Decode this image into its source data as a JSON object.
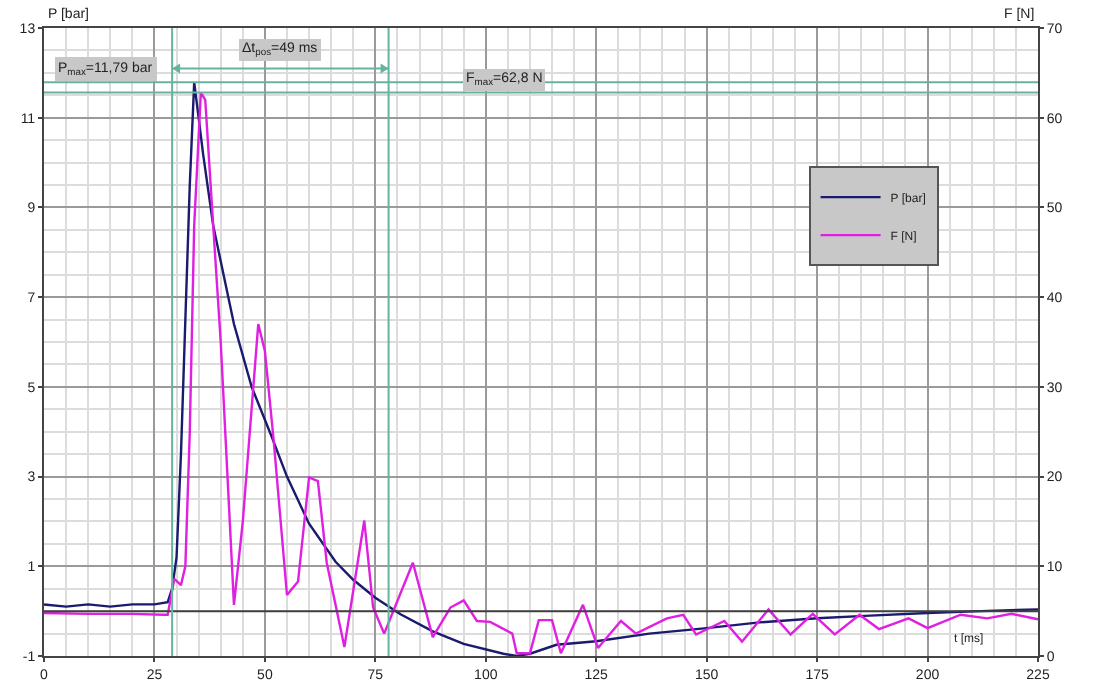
{
  "chart_data": {
    "type": "line",
    "xlabel": "t [ms]",
    "ylabel": "P [bar]",
    "y2label": "F [N]",
    "xlim": [
      0,
      225
    ],
    "xticks": [
      0,
      25,
      50,
      75,
      100,
      125,
      150,
      175,
      200,
      225
    ],
    "ylim": [
      -1,
      13
    ],
    "yticks": [
      -1,
      1,
      3,
      5,
      7,
      9,
      11,
      13
    ],
    "y2lim": [
      0,
      70
    ],
    "y2ticks": [
      0,
      10,
      20,
      30,
      40,
      50,
      60,
      70
    ],
    "grid": true,
    "legend": "top right",
    "marker": "none",
    "line_style": "solid",
    "series": [
      {
        "name": "P [bar]",
        "color": "#1a1a6e",
        "x": [
          0,
          5,
          10,
          15,
          20,
          25,
          28,
          29,
          30,
          31,
          32,
          33,
          34,
          35,
          36,
          38.3,
          40,
          43,
          47,
          51.5,
          55,
          60,
          66,
          70,
          75,
          80.7,
          88,
          95,
          104,
          107,
          110,
          116,
          125,
          137,
          150,
          162,
          175,
          187,
          200,
          212,
          225
        ],
        "values": [
          0.15,
          0.1,
          0.15,
          0.1,
          0.15,
          0.15,
          0.2,
          0.5,
          1.2,
          3.5,
          6.5,
          9.5,
          11.79,
          11,
          10.2,
          8.6,
          7.8,
          6.4,
          5,
          3.9,
          3,
          1.95,
          1.1,
          0.7,
          0.3,
          -0.07,
          -0.45,
          -0.73,
          -0.95,
          -1,
          -0.95,
          -0.75,
          -0.67,
          -0.5,
          -0.38,
          -0.25,
          -0.16,
          -0.1,
          -0.04,
          0,
          0.04
        ]
      },
      {
        "name": "F [N]",
        "color": "#e020e0",
        "axis": "y2",
        "x": [
          0,
          10,
          20,
          27,
          28,
          29.5,
          31,
          32,
          33,
          34,
          35.5,
          36.5,
          38.3,
          40,
          43,
          45,
          48.5,
          50,
          52,
          55,
          57.5,
          60,
          62,
          64,
          68,
          72.5,
          74.5,
          77,
          83.5,
          88,
          92,
          95,
          98,
          101,
          106,
          107,
          110,
          112,
          115,
          117,
          122,
          125.4,
          130.6,
          134,
          141,
          144.7,
          147.6,
          154,
          158,
          164,
          169,
          174,
          179,
          184.6,
          189,
          195.7,
          200,
          207.5,
          213.5,
          219,
          225
        ],
        "values": [
          4.8,
          4.7,
          4.7,
          4.6,
          4.6,
          8.6,
          7.9,
          10,
          25,
          48,
          62.8,
          62,
          48,
          35,
          5.7,
          15,
          37,
          34,
          24,
          6.8,
          8.3,
          19.9,
          19.5,
          10.4,
          1,
          15.1,
          5.4,
          2.5,
          10.4,
          2.1,
          5.4,
          6.2,
          3.9,
          3.8,
          2.5,
          0.3,
          0.3,
          4,
          4,
          0.3,
          5.7,
          0.9,
          3.9,
          2.5,
          4.2,
          4.6,
          2.4,
          3.9,
          1.6,
          5.2,
          2.4,
          4.7,
          2.4,
          4.6,
          3,
          4.2,
          3.1,
          4.6,
          4.2,
          4.7,
          4.1
        ]
      }
    ],
    "ref_lines": [
      {
        "axis": "y",
        "value": 0,
        "color": "#404040"
      },
      {
        "axis": "x",
        "value": 29,
        "color": "#66b3a0"
      },
      {
        "axis": "x",
        "value": 78,
        "color": "#66b3a0"
      },
      {
        "axis": "y",
        "value": 11.79,
        "label": "P$_{max}$=11,79 bar",
        "color": "#66b3a0"
      },
      {
        "axis": "y2",
        "value": 62.8,
        "label": "F$_{max}$=62,8 N",
        "color": "#66b3a0"
      }
    ],
    "annotations": [
      "Δt$_{pos}$=49 ms"
    ]
  }
}
